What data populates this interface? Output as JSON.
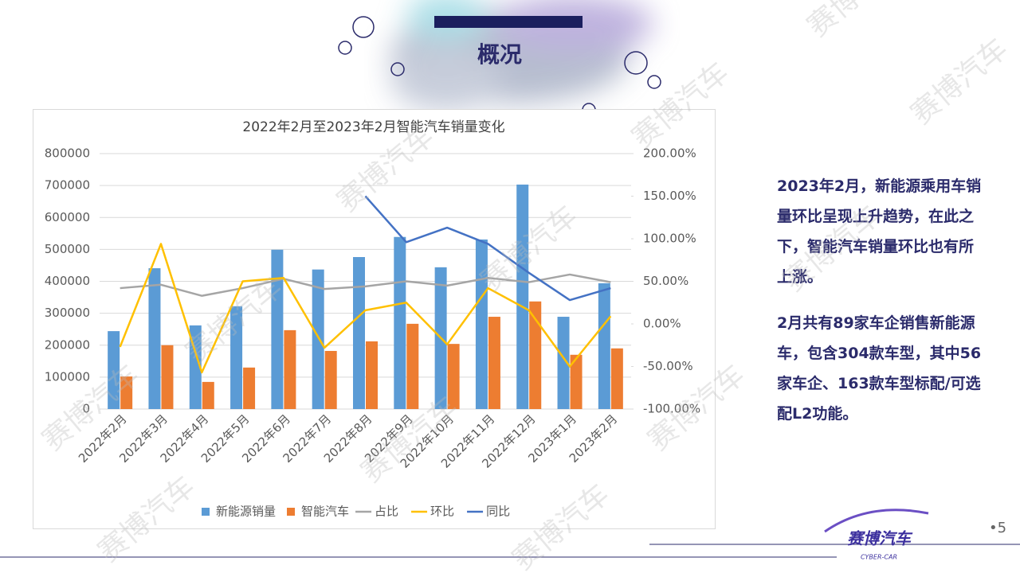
{
  "slide_title": "概况",
  "watermark": "赛博汽车",
  "paragraphs": [
    "2023年2月，新能源乘用车销量环比呈现上升趋势，在此之下，智能汽车销量环比也有所上涨。",
    "2月共有89家车企销售新能源车，包含304款车型，其中56家车企、163款车型标配/可选配L2功能。"
  ],
  "logo": {
    "name": "赛博汽车",
    "sub": "CYBER-CAR"
  },
  "page_number": "•5",
  "chart_data": {
    "type": "combo",
    "title": "2022年2月至2023年2月智能汽车销量变化",
    "categories": [
      "2022年2月",
      "2022年3月",
      "2022年4月",
      "2022年5月",
      "2022年6月",
      "2022年7月",
      "2022年8月",
      "2022年9月",
      "2022年10月",
      "2022年11月",
      "2022年12月",
      "2023年1月",
      "2023年2月"
    ],
    "series": [
      {
        "name": "新能源销量",
        "type": "bar",
        "color": "#5b9bd5",
        "values": [
          244000,
          441000,
          262000,
          322000,
          499000,
          437000,
          476000,
          539000,
          444000,
          531000,
          703000,
          289000,
          394000
        ]
      },
      {
        "name": "智能汽车",
        "type": "bar",
        "color": "#ed7d31",
        "values": [
          102000,
          200000,
          85000,
          130000,
          247000,
          182000,
          212000,
          267000,
          204000,
          289000,
          337000,
          170000,
          190000
        ]
      },
      {
        "name": "占比",
        "type": "line",
        "axis": "y2",
        "color": "#a5a5a5",
        "values": [
          42,
          46,
          33,
          42,
          53,
          41,
          44,
          50,
          45,
          54,
          49,
          58,
          49
        ]
      },
      {
        "name": "环比",
        "type": "line",
        "axis": "y2",
        "color": "#ffc000",
        "values": [
          -27,
          94,
          -57,
          50,
          54,
          -28,
          16,
          25,
          -24,
          42,
          16,
          -50,
          9
        ]
      },
      {
        "name": "同比",
        "type": "line",
        "axis": "y2",
        "color": "#4472c4",
        "values": [
          null,
          null,
          null,
          null,
          null,
          null,
          150,
          96,
          113,
          94,
          60,
          28,
          42
        ]
      }
    ],
    "ylim": [
      0,
      800000
    ],
    "yticks": [
      0,
      100000,
      200000,
      300000,
      400000,
      500000,
      600000,
      700000,
      800000
    ],
    "y2lim": [
      -100,
      200
    ],
    "y2ticks": [
      {
        "value": -100,
        "label": "-100.00%"
      },
      {
        "value": -50,
        "label": "-50.00%"
      },
      {
        "value": 0,
        "label": "0.00%"
      },
      {
        "value": 50,
        "label": "50.00%"
      },
      {
        "value": 100,
        "label": "100.00%"
      },
      {
        "value": 150,
        "label": "150.00%"
      },
      {
        "value": 200,
        "label": "200.00%"
      }
    ],
    "grid": true,
    "legend": "bottom"
  }
}
